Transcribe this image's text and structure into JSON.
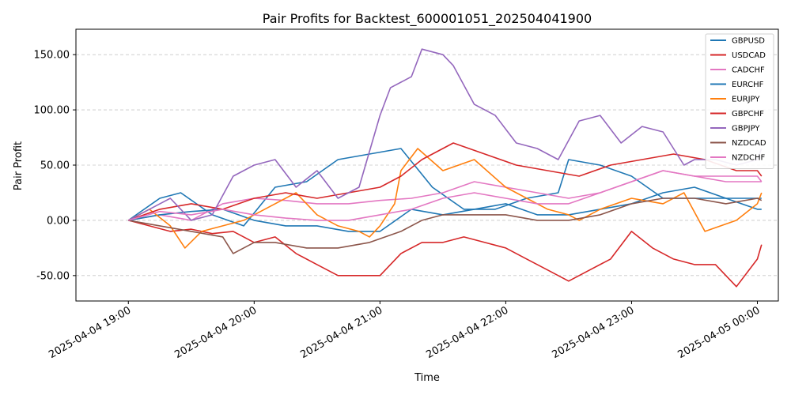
{
  "chart_data": {
    "type": "line",
    "title": "Pair Profits for Backtest_600001051_202504041900",
    "xlabel": "Time",
    "ylabel": "Pair Profit",
    "x_ticks": [
      "2025-04-04 19:00",
      "2025-04-04 20:00",
      "2025-04-04 21:00",
      "2025-04-04 22:00",
      "2025-04-04 23:00",
      "2025-04-05 00:00"
    ],
    "y_ticks": [
      "-50.00",
      "0.00",
      "50.00",
      "100.00",
      "150.00"
    ],
    "xlim_minutes": [
      -25,
      310
    ],
    "ylim": [
      -73,
      173
    ],
    "grid": "horizontal-dashed",
    "legend_position": "top-right",
    "series": [
      {
        "name": "GBPUSD",
        "color": "#1f77b4",
        "x": [
          0,
          15,
          25,
          40,
          55,
          70,
          85,
          100,
          115,
          130,
          145,
          160,
          175,
          190,
          205,
          210,
          225,
          240,
          255,
          270,
          285,
          300,
          302
        ],
        "values": [
          0,
          20,
          25,
          5,
          -5,
          30,
          35,
          55,
          60,
          65,
          30,
          10,
          10,
          20,
          25,
          55,
          50,
          40,
          20,
          20,
          20,
          20,
          20
        ]
      },
      {
        "name": "USDCAD",
        "color": "#d62728",
        "x": [
          0,
          10,
          20,
          30,
          40,
          50,
          60,
          70,
          80,
          90,
          100,
          110,
          120,
          130,
          140,
          150,
          160,
          170,
          180,
          190,
          200,
          210,
          220,
          230,
          240,
          250,
          260,
          270,
          280,
          290,
          300,
          302
        ],
        "values": [
          0,
          -5,
          -10,
          -8,
          -12,
          -10,
          -20,
          -15,
          -30,
          -40,
          -50,
          -50,
          -50,
          -30,
          -20,
          -20,
          -15,
          -20,
          -25,
          -35,
          -45,
          -55,
          -45,
          -35,
          -10,
          -25,
          -35,
          -40,
          -40,
          -60,
          -35,
          -22
        ]
      },
      {
        "name": "CADCHF",
        "color": "#e377c2",
        "x": [
          0,
          15,
          30,
          45,
          60,
          75,
          90,
          105,
          120,
          135,
          150,
          165,
          180,
          195,
          210,
          225,
          240,
          255,
          270,
          285,
          300,
          302
        ],
        "values": [
          0,
          5,
          0,
          15,
          20,
          18,
          15,
          15,
          18,
          20,
          25,
          35,
          30,
          25,
          20,
          25,
          35,
          45,
          40,
          40,
          40,
          35
        ]
      },
      {
        "name": "EURCHF",
        "color": "#1f77b4",
        "x": [
          0,
          15,
          30,
          45,
          60,
          75,
          90,
          105,
          120,
          135,
          150,
          165,
          180,
          195,
          210,
          225,
          240,
          255,
          270,
          285,
          300,
          302
        ],
        "values": [
          0,
          5,
          8,
          10,
          0,
          -5,
          -5,
          -10,
          -10,
          10,
          5,
          10,
          15,
          5,
          5,
          10,
          15,
          25,
          30,
          20,
          10,
          10
        ]
      },
      {
        "name": "EURJPY",
        "color": "#ff7f0e",
        "x": [
          0,
          10,
          20,
          27,
          35,
          45,
          55,
          70,
          80,
          90,
          100,
          110,
          115,
          120,
          127,
          130,
          138,
          150,
          165,
          180,
          190,
          200,
          210,
          215,
          225,
          240,
          255,
          265,
          275,
          290,
          300,
          302
        ],
        "values": [
          0,
          10,
          -5,
          -25,
          -10,
          -5,
          0,
          15,
          25,
          5,
          -5,
          -10,
          -15,
          -5,
          15,
          45,
          65,
          45,
          55,
          30,
          20,
          10,
          5,
          0,
          10,
          20,
          15,
          25,
          -10,
          0,
          15,
          25
        ]
      },
      {
        "name": "GBPCHF",
        "color": "#d62728",
        "x": [
          0,
          15,
          30,
          45,
          60,
          75,
          90,
          105,
          120,
          130,
          140,
          155,
          170,
          185,
          200,
          215,
          230,
          245,
          260,
          275,
          290,
          300,
          302
        ],
        "values": [
          0,
          10,
          15,
          10,
          20,
          25,
          20,
          25,
          30,
          40,
          55,
          70,
          60,
          50,
          45,
          40,
          50,
          55,
          60,
          55,
          45,
          45,
          40
        ]
      },
      {
        "name": "GBPJPY",
        "color": "#9467bd",
        "x": [
          0,
          20,
          30,
          40,
          50,
          60,
          70,
          80,
          90,
          100,
          110,
          120,
          125,
          135,
          140,
          150,
          155,
          165,
          175,
          185,
          195,
          205,
          215,
          225,
          235,
          245,
          255,
          265,
          270,
          280,
          290,
          300,
          302
        ],
        "values": [
          0,
          20,
          0,
          5,
          40,
          50,
          55,
          30,
          45,
          20,
          30,
          95,
          120,
          130,
          155,
          150,
          140,
          105,
          95,
          70,
          65,
          55,
          90,
          95,
          70,
          85,
          80,
          50,
          55,
          55,
          50,
          55,
          65
        ]
      },
      {
        "name": "NZDCAD",
        "color": "#8c564b",
        "x": [
          0,
          15,
          30,
          45,
          50,
          60,
          70,
          85,
          100,
          115,
          130,
          140,
          150,
          165,
          180,
          195,
          210,
          225,
          240,
          255,
          270,
          285,
          300,
          302
        ],
        "values": [
          0,
          -5,
          -10,
          -15,
          -30,
          -20,
          -20,
          -25,
          -25,
          -20,
          -10,
          0,
          5,
          5,
          5,
          0,
          0,
          5,
          15,
          20,
          20,
          15,
          20,
          18
        ]
      },
      {
        "name": "NZDCHF",
        "color": "#e377c2",
        "x": [
          0,
          15,
          30,
          45,
          60,
          75,
          90,
          105,
          120,
          135,
          150,
          165,
          180,
          195,
          210,
          225,
          240,
          255,
          270,
          285,
          300,
          302
        ],
        "values": [
          0,
          8,
          5,
          10,
          5,
          2,
          0,
          0,
          5,
          10,
          20,
          25,
          20,
          15,
          15,
          25,
          35,
          45,
          40,
          35,
          35,
          35
        ]
      }
    ]
  }
}
